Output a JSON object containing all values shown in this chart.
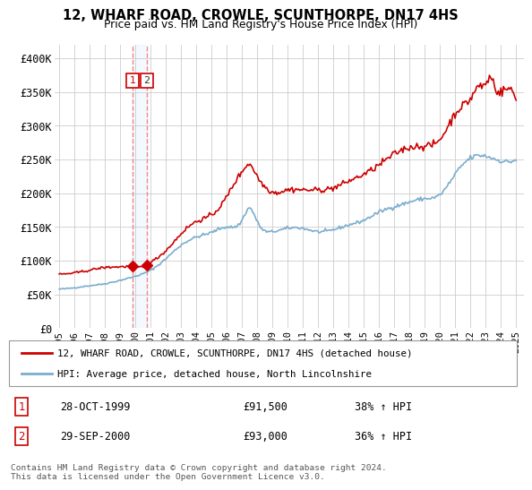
{
  "title": "12, WHARF ROAD, CROWLE, SCUNTHORPE, DN17 4HS",
  "subtitle": "Price paid vs. HM Land Registry's House Price Index (HPI)",
  "legend_label_red": "12, WHARF ROAD, CROWLE, SCUNTHORPE, DN17 4HS (detached house)",
  "legend_label_blue": "HPI: Average price, detached house, North Lincolnshire",
  "footer": "Contains HM Land Registry data © Crown copyright and database right 2024.\nThis data is licensed under the Open Government Licence v3.0.",
  "sale1_label": "1",
  "sale1_date": "28-OCT-1999",
  "sale1_price": "£91,500",
  "sale1_hpi": "38% ↑ HPI",
  "sale2_label": "2",
  "sale2_date": "29-SEP-2000",
  "sale2_price": "£93,000",
  "sale2_hpi": "36% ↑ HPI",
  "sale1_x": 1999.82,
  "sale2_x": 2000.75,
  "sale1_y": 91500,
  "sale2_y": 93000,
  "red_color": "#cc0000",
  "blue_color": "#7aadce",
  "dashed_color": "#ee8888",
  "shade_color": "#ddeeff",
  "grid_color": "#cccccc",
  "background_color": "#ffffff",
  "ylim": [
    0,
    420000
  ],
  "xlim_start": 1994.7,
  "xlim_end": 2025.5,
  "yticks": [
    0,
    50000,
    100000,
    150000,
    200000,
    250000,
    300000,
    350000,
    400000
  ],
  "ytick_labels": [
    "£0",
    "£50K",
    "£100K",
    "£150K",
    "£200K",
    "£250K",
    "£300K",
    "£350K",
    "£400K"
  ],
  "xtick_years": [
    1995,
    1996,
    1997,
    1998,
    1999,
    2000,
    2001,
    2002,
    2003,
    2004,
    2005,
    2006,
    2007,
    2008,
    2009,
    2010,
    2011,
    2012,
    2013,
    2014,
    2015,
    2016,
    2017,
    2018,
    2019,
    2020,
    2021,
    2022,
    2023,
    2024,
    2025
  ]
}
